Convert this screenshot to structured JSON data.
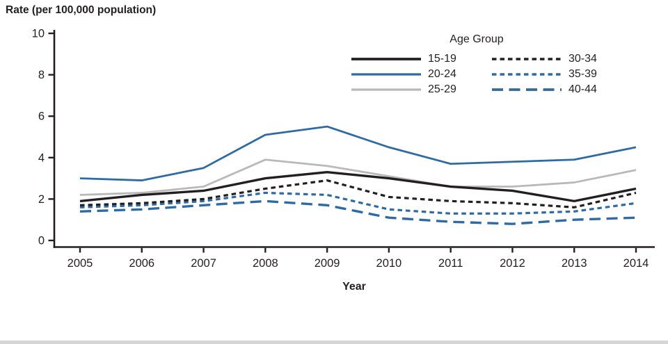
{
  "chart_data": {
    "type": "line",
    "title": "Rate (per 100,000 population)",
    "ylabel": "Rate (per 100,000 population)",
    "xlabel": "Year",
    "legend_title": "Age Group",
    "legend_position": "top-center-right-inside",
    "grid": false,
    "ylim": [
      0,
      10
    ],
    "yticks": [
      0,
      2,
      4,
      6,
      8,
      10
    ],
    "x": [
      "2005",
      "2006",
      "2007",
      "2008",
      "2009",
      "2010",
      "2011",
      "2012",
      "2013",
      "2014"
    ],
    "axis_color": "#231f20",
    "series": [
      {
        "name": "15-19",
        "color": "#231f20",
        "dash": "solid",
        "width": 3.4,
        "values": [
          1.9,
          2.2,
          2.4,
          3.0,
          3.3,
          3.0,
          2.6,
          2.4,
          1.9,
          2.5
        ]
      },
      {
        "name": "20-24",
        "color": "#2e6ba4",
        "dash": "solid",
        "width": 2.8,
        "values": [
          3.0,
          2.9,
          3.5,
          5.1,
          5.5,
          4.5,
          3.7,
          3.8,
          3.9,
          4.5
        ]
      },
      {
        "name": "25-29",
        "color": "#b9b9b9",
        "dash": "solid",
        "width": 2.8,
        "values": [
          2.2,
          2.3,
          2.6,
          3.9,
          3.6,
          3.1,
          2.6,
          2.6,
          2.8,
          3.4
        ]
      },
      {
        "name": "30-34",
        "color": "#231f20",
        "dash": "short",
        "width": 3.2,
        "values": [
          1.7,
          1.8,
          2.0,
          2.5,
          2.9,
          2.1,
          1.9,
          1.8,
          1.6,
          2.3
        ]
      },
      {
        "name": "35-39",
        "color": "#2e6ba4",
        "dash": "short",
        "width": 3.2,
        "values": [
          1.6,
          1.7,
          1.9,
          2.3,
          2.2,
          1.5,
          1.3,
          1.3,
          1.4,
          1.8
        ]
      },
      {
        "name": "40-44",
        "color": "#2e6ba4",
        "dash": "long",
        "width": 3.4,
        "values": [
          1.4,
          1.5,
          1.7,
          1.9,
          1.7,
          1.1,
          0.9,
          0.8,
          1.0,
          1.1
        ]
      }
    ]
  }
}
